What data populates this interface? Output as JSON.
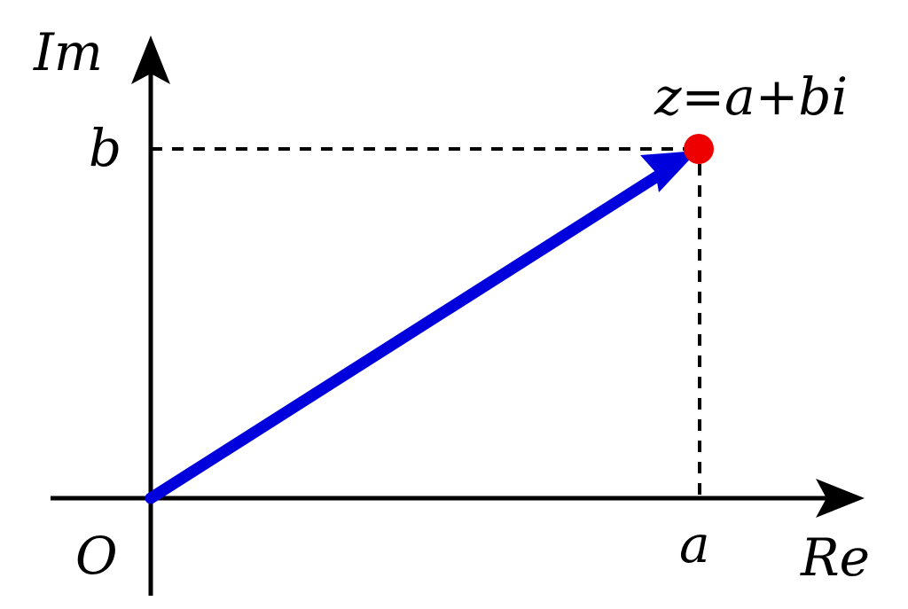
{
  "diagram": {
    "labels": {
      "imaginary_axis": "Im",
      "real_axis": "Re",
      "origin": "O",
      "real_part": "a",
      "imaginary_part": "b",
      "point": "z=a+bi"
    },
    "colors": {
      "axes": "#000000",
      "vector": "#0000dd",
      "point": "#ee0000",
      "guides": "#000000",
      "background": "#ffffff"
    }
  }
}
